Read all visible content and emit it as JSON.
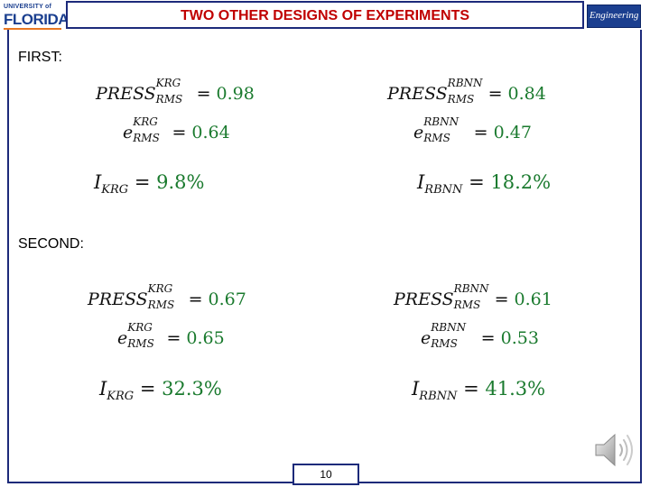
{
  "header": {
    "title": "TWO OTHER DESIGNS OF EXPERIMENTS",
    "logo_left_top": "UNIVERSITY of",
    "logo_left_main": "FLORIDA",
    "logo_right": "Engineering"
  },
  "first": {
    "label": "FIRST:",
    "krg": {
      "press_base": "PRESS",
      "press_sup": "KRG",
      "press_sub": "RMS",
      "press_value": "0.98",
      "err_base": "e",
      "err_sup": "KRG",
      "err_sub": "RMS",
      "err_value": "0.64",
      "ind_base": "I",
      "ind_sub": "KRG",
      "ind_value": "9.8%"
    },
    "rbnn": {
      "press_base": "PRESS",
      "press_sup": "RBNN",
      "press_sub": "RMS",
      "press_value": "0.84",
      "err_base": "e",
      "err_sup": "RBNN",
      "err_sub": "RMS",
      "err_value": "0.47",
      "ind_base": "I",
      "ind_sub": "RBNN",
      "ind_value": "18.2%"
    }
  },
  "second": {
    "label": "SECOND:",
    "krg": {
      "press_base": "PRESS",
      "press_sup": "KRG",
      "press_sub": "RMS",
      "press_value": "0.67",
      "err_base": "e",
      "err_sup": "KRG",
      "err_sub": "RMS",
      "err_value": "0.65",
      "ind_base": "I",
      "ind_sub": "KRG",
      "ind_value": "32.3%"
    },
    "rbnn": {
      "press_base": "PRESS",
      "press_sup": "RBNN",
      "press_sub": "RMS",
      "press_value": "0.61",
      "err_base": "e",
      "err_sup": "RBNN",
      "err_sub": "RMS",
      "err_value": "0.53",
      "ind_base": "I",
      "ind_sub": "RBNN",
      "ind_value": "41.3%"
    }
  },
  "footer": {
    "page_number": "10"
  },
  "icons": {
    "audio": "speaker-icon"
  },
  "colors": {
    "title": "#c00000",
    "frame": "#1c2a7a",
    "value": "#1a7a2e",
    "logo_blue": "#1b3f8f",
    "logo_orange": "#e87722"
  }
}
